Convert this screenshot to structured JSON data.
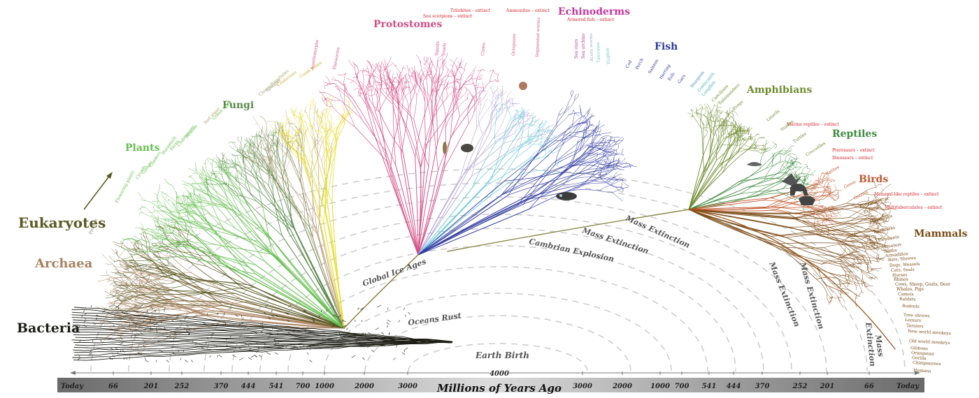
{
  "groups": {
    "bacteria": "Bacteria",
    "archaea": "Archaea",
    "eukaryotes": "Eukaryotes",
    "plants": "Plants",
    "fungi": "Fungi",
    "protostomes": "Protostomes",
    "echinoderms": "Echinoderms",
    "fish": "Fish",
    "amphibians": "Amphibians",
    "reptiles": "Reptiles",
    "birds": "Birds",
    "mammals": "Mammals"
  },
  "events": {
    "earth_birth": "Earth Birth",
    "oceans_rust": "Oceans Rust",
    "global_ice_ages": "Global Ice Ages",
    "cambrian_explosion": "Cambrian Explosion",
    "mass_extinction": "Mass Extinction",
    "mass": "Mass",
    "extinction": "Extinction"
  },
  "extinct_notes": {
    "trilobites": "Trilobites – extinct",
    "sea_scorpions": "Sea scorpions – extinct",
    "ammonites": "Ammonites – extinct",
    "armored_fish": "Armored fish – extinct",
    "marine_reptiles": "Marine reptiles – extinct",
    "pterosaurs": "Pterosaurs – extinct",
    "dinosaurs": "Dinosaurs – extinct",
    "mammal_like_reptiles": "Mammal-like reptiles – extinct",
    "multituberculates": "Multituberculates – extinct"
  },
  "leaf_labels": {
    "protists": "Protists",
    "flowering_plants": "Flowering plants",
    "cycads": "Cycads",
    "ginkgo": "Ginkgo",
    "conifers": "Conifers",
    "horsetails": "Horsetails",
    "ferns": "Ferns",
    "clubmosses": "Clubmosses",
    "mosses": "Mosses",
    "red_algae": "Red algae",
    "green_algae": "Green algae",
    "choanoflagellates": "Choanoflagellates",
    "sponges": "Sponges",
    "cnidarians": "Cnidarians",
    "comb_jellies": "Comb jellies",
    "acoelomorphs": "Acoelomorphs",
    "flatworms": "Flatworms",
    "squids": "Squids",
    "snails": "Snails",
    "clams": "Clams",
    "octopuses": "Octopuses",
    "segmented_worms": "Segmented worms",
    "sea_stars": "Sea stars",
    "sea_urchins": "Sea urchins",
    "acorn_worms": "Acorn worms",
    "tunicates": "Tunicates",
    "hagfish": "Hagfish",
    "cod": "Cod",
    "perch": "Perch",
    "salmon": "Salmon",
    "herring": "Herring",
    "eels": "Eels",
    "gars": "Gars",
    "sturgeon": "Sturgeon",
    "coelacanth": "Coelacanth",
    "lungfish": "Lungfish",
    "caecilians": "Caecilians",
    "salamanders": "Salamanders",
    "frogs": "Frogs",
    "lizards": "Lizards",
    "snakes": "Snakes",
    "turtles": "Turtles",
    "crocodiles": "Crocodiles",
    "ratites": "Ratites",
    "geese": "Geese",
    "ostrich": "Ostrich",
    "platypus": "Platypus",
    "echidna": "Echidna",
    "marsupials": "Marsupials",
    "aardvarks": "Aardvarks",
    "elephants": "Elephants",
    "anteaters": "Anteaters",
    "sloths": "Sloths",
    "armadillos": "Armadillos",
    "bats_shrews": "Bats, Shrews",
    "dogs_weasels": "Dogs, Weasels",
    "cats_seals": "Cats, Seals",
    "horses": "Horses",
    "rhinos": "Rhinos",
    "cows_sheep_goats_deer": "Cows, Sheep, Goats, Deer",
    "whales_pigs": "Whales, Pigs",
    "camels": "Camels",
    "rabbits": "Rabbits",
    "rodents": "Rodents",
    "tree_shrews": "Tree shrews",
    "lemurs": "Lemurs",
    "tarsiers": "Tarsiers",
    "new_world_monkeys": "New world monkeys",
    "old_world_monkeys": "Old world monkeys",
    "gibbons": "Gibbons",
    "orangutan": "Orangutan",
    "gorilla": "Gorilla",
    "chimpanzees": "Chimpanzees",
    "humans": "Humans"
  },
  "axis": {
    "title": "Millions of Years Ago",
    "top_value": "4000",
    "ticks": [
      "Today",
      "66",
      "201",
      "252",
      "370",
      "444",
      "541",
      "700",
      "1000",
      "2000",
      "3000",
      "3000",
      "2000",
      "1000",
      "700",
      "541",
      "444",
      "370",
      "252",
      "201",
      "66",
      "Today"
    ]
  },
  "colors": {
    "bacteria": "#1e1e16",
    "archaea": "#a8825e",
    "eukaryotes": "#5b5a24",
    "plants": "#64bf4e",
    "fungi": "#5a8a4a",
    "protostomes": "#d44f87",
    "echinoderms": "#c2379b",
    "fish": "#2f3aa0",
    "amphibians": "#6f8a2e",
    "reptiles": "#3c8a3c",
    "birds": "#c2582c",
    "mammals": "#7a4a14",
    "extinct": "#d0202a",
    "axis_bar": "#8c8c8c"
  }
}
